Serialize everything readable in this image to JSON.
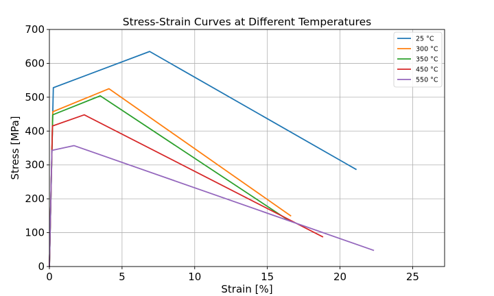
{
  "chart_data": {
    "type": "line",
    "title": "Stress-Strain Curves at Different Temperatures",
    "xlabel": "Strain [%]",
    "ylabel": "Stress [MPa]",
    "xlim": [
      0,
      27.2
    ],
    "ylim": [
      0,
      700
    ],
    "xticks": [
      0,
      5,
      10,
      15,
      20,
      25
    ],
    "yticks": [
      0,
      100,
      200,
      300,
      400,
      500,
      600,
      700
    ],
    "grid": true,
    "legend_position": "top-right",
    "series": [
      {
        "name": "25 °C",
        "color": "#1f77b4",
        "x": [
          0,
          0.27,
          6.9,
          21.1
        ],
        "y": [
          0,
          528,
          635,
          287
        ]
      },
      {
        "name": "300 °C",
        "color": "#ff7f0e",
        "x": [
          0,
          0.23,
          4.1,
          16.6
        ],
        "y": [
          0,
          457,
          525,
          150
        ]
      },
      {
        "name": "350 °C",
        "color": "#2ca02c",
        "x": [
          0,
          0.23,
          3.5,
          16.4
        ],
        "y": [
          0,
          448,
          504,
          138
        ]
      },
      {
        "name": "450 °C",
        "color": "#d62728",
        "x": [
          0,
          0.21,
          2.4,
          18.8
        ],
        "y": [
          0,
          415,
          448,
          88
        ]
      },
      {
        "name": "550 °C",
        "color": "#9467bd",
        "x": [
          0,
          0.17,
          1.7,
          22.3
        ],
        "y": [
          0,
          343,
          357,
          48
        ]
      }
    ]
  }
}
